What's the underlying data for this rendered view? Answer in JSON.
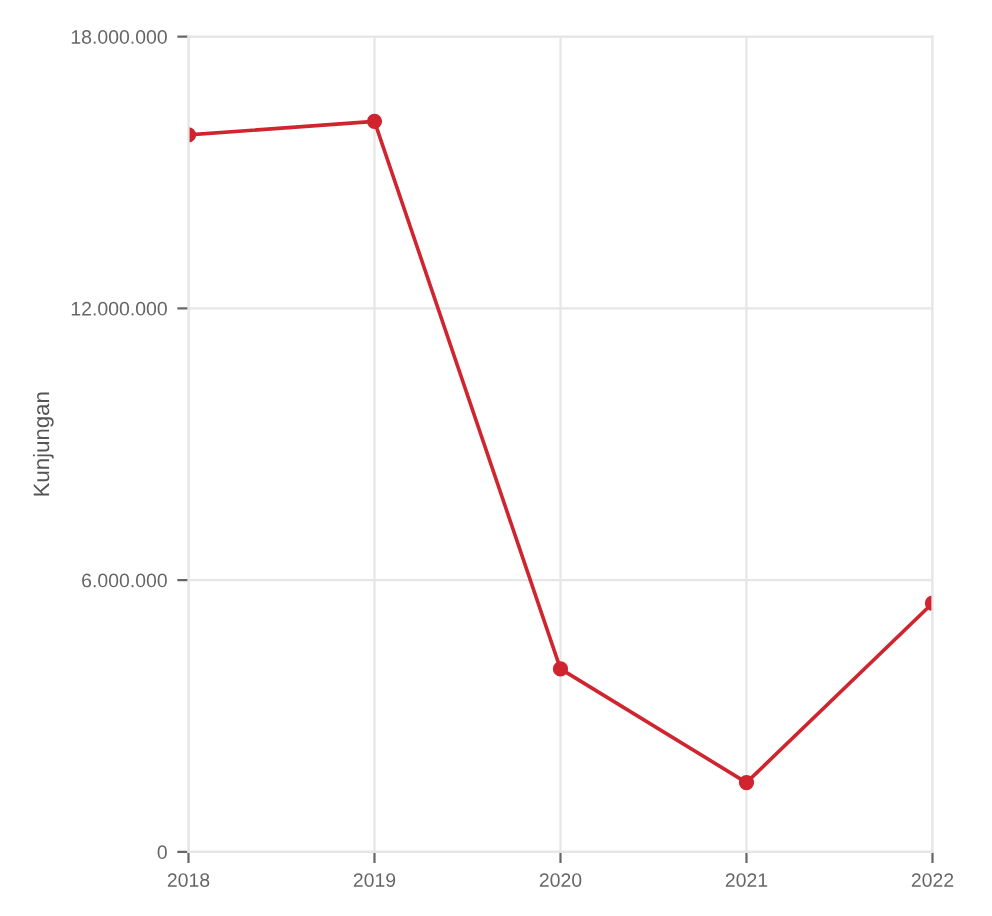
{
  "chart_data": {
    "type": "line",
    "ylabel": "Kunjungan",
    "categories": [
      "2018",
      "2019",
      "2020",
      "2021",
      "2022"
    ],
    "series": [
      {
        "color": "#d0242f",
        "values": [
          15830000,
          16130000,
          4040000,
          1530000,
          5490000
        ]
      }
    ],
    "ylim": [
      0,
      18000000
    ],
    "yticks": [
      0,
      {
        "value": 6000000,
        "label": "6.000.000"
      },
      {
        "value": 12000000,
        "label": "12.000.000"
      },
      {
        "value": 18000000,
        "label": "18.000.000"
      }
    ],
    "grid": true,
    "marker": "circle",
    "line_style": "solid"
  }
}
